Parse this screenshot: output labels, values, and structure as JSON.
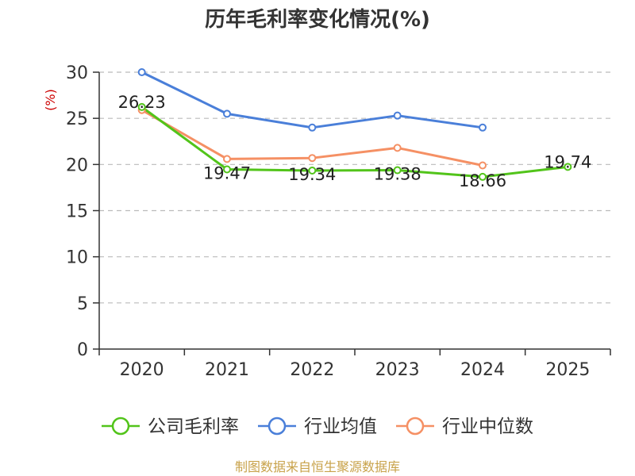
{
  "chart_data": {
    "type": "line",
    "title": "历年毛利率变化情况(%)",
    "ylabel": "(%)",
    "xlabel": "",
    "categories": [
      "2020",
      "2021",
      "2022",
      "2023",
      "2024",
      "2025"
    ],
    "ylim": [
      0,
      30
    ],
    "yticks": [
      0,
      5,
      10,
      15,
      20,
      25,
      30
    ],
    "grid": true,
    "grid_style": "dashed horizontal",
    "legend_position": "bottom",
    "series": [
      {
        "name": "公司毛利率",
        "color": "#52c41a",
        "values": [
          26.23,
          19.47,
          19.34,
          19.38,
          18.66,
          19.74
        ],
        "labels": [
          "26.23",
          "19.47",
          "19.34",
          "19.38",
          "18.66",
          "19.74"
        ]
      },
      {
        "name": "行业均值",
        "color": "#4a7fd9",
        "values": [
          30.0,
          25.5,
          24.0,
          25.3,
          24.0,
          null
        ]
      },
      {
        "name": "行业中位数",
        "color": "#f59064",
        "values": [
          25.9,
          20.6,
          20.7,
          21.8,
          19.9,
          null
        ]
      }
    ],
    "source": "制图数据来自恒生聚源数据库",
    "unit_color": "#cc0000",
    "source_color": "#c8a24a",
    "axis_color": "#333333",
    "grid_color": "#bbbbbb"
  }
}
